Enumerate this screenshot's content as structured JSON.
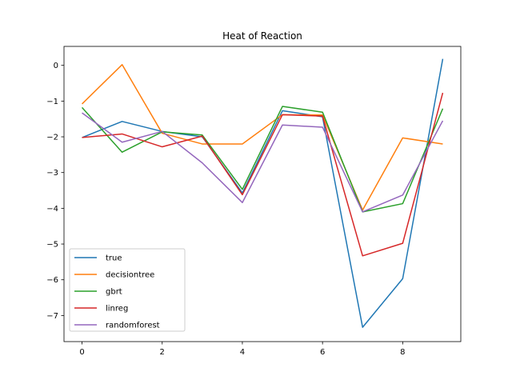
{
  "chart_data": {
    "type": "line",
    "title": "Heat of Reaction",
    "xlabel": "",
    "ylabel": "",
    "x": [
      0,
      1,
      2,
      3,
      4,
      5,
      6,
      7,
      8,
      9
    ],
    "xlim": [
      -0.45,
      9.45
    ],
    "ylim": [
      -7.73,
      0.53
    ],
    "xticks": [
      0,
      2,
      4,
      6,
      8
    ],
    "yticks": [
      0,
      -1,
      -2,
      -3,
      -4,
      -5,
      -6,
      -7
    ],
    "grid": false,
    "legend_position": "lower-left",
    "series": [
      {
        "name": "true",
        "color": "#1f77b4",
        "values": [
          -2.02,
          -1.57,
          -1.85,
          -2.0,
          -3.57,
          -1.27,
          -1.44,
          -7.33,
          -5.97,
          0.18
        ]
      },
      {
        "name": "decisiontree",
        "color": "#ff7f0e",
        "values": [
          -1.08,
          0.02,
          -1.9,
          -2.2,
          -2.2,
          -1.38,
          -1.39,
          -4.05,
          -2.03,
          -2.2
        ]
      },
      {
        "name": "gbrt",
        "color": "#2ca02c",
        "values": [
          -1.18,
          -2.43,
          -1.86,
          -1.95,
          -3.47,
          -1.15,
          -1.31,
          -4.1,
          -3.87,
          -1.21
        ]
      },
      {
        "name": "linreg",
        "color": "#d62728",
        "values": [
          -2.02,
          -1.92,
          -2.28,
          -1.98,
          -3.62,
          -1.38,
          -1.42,
          -5.33,
          -4.98,
          -0.77
        ]
      },
      {
        "name": "randomforest",
        "color": "#9467bd",
        "values": [
          -1.33,
          -2.15,
          -1.85,
          -2.73,
          -3.84,
          -1.67,
          -1.73,
          -4.1,
          -3.63,
          -1.55
        ]
      }
    ]
  }
}
